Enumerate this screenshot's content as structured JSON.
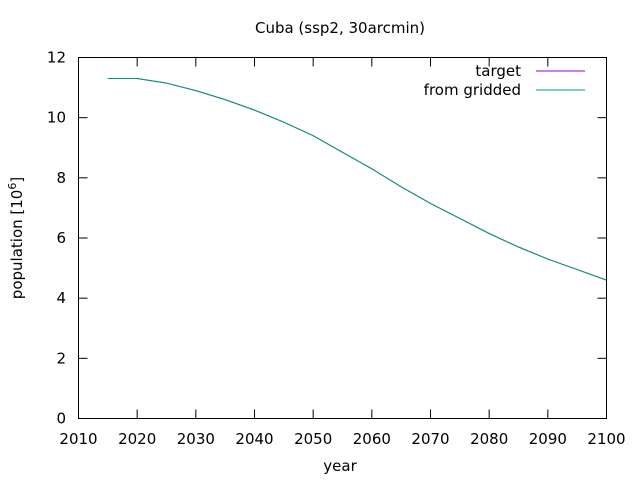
{
  "chart_data": {
    "type": "line",
    "title": "Cuba (ssp2, 30arcmin)",
    "xlabel": "year",
    "ylabel": "population [10",
    "ylabel_exponent": "6",
    "ylabel_suffix": "]",
    "xlim": [
      2010,
      2100
    ],
    "ylim": [
      0,
      12
    ],
    "xticks": [
      2010,
      2020,
      2030,
      2040,
      2050,
      2060,
      2070,
      2080,
      2090,
      2100
    ],
    "yticks": [
      0,
      2,
      4,
      6,
      8,
      10,
      12
    ],
    "grid": false,
    "legend_position": "top-right",
    "series": [
      {
        "name": "target",
        "color": "#9400d3",
        "x": [
          2015,
          2020,
          2025,
          2030,
          2035,
          2040,
          2045,
          2050,
          2055,
          2060,
          2065,
          2070,
          2075,
          2080,
          2085,
          2090,
          2095,
          2100
        ],
        "y": [
          11.3,
          11.3,
          11.15,
          10.9,
          10.6,
          10.25,
          9.85,
          9.4,
          8.85,
          8.3,
          7.7,
          7.15,
          6.65,
          6.15,
          5.7,
          5.3,
          4.95,
          4.6
        ]
      },
      {
        "name": "from gridded",
        "color": "#009e73",
        "x": [
          2015,
          2020,
          2025,
          2030,
          2035,
          2040,
          2045,
          2050,
          2055,
          2060,
          2065,
          2070,
          2075,
          2080,
          2085,
          2090,
          2095,
          2100
        ],
        "y": [
          11.3,
          11.3,
          11.15,
          10.9,
          10.6,
          10.25,
          9.85,
          9.4,
          8.85,
          8.3,
          7.7,
          7.15,
          6.65,
          6.15,
          5.7,
          5.3,
          4.95,
          4.6
        ]
      }
    ]
  }
}
